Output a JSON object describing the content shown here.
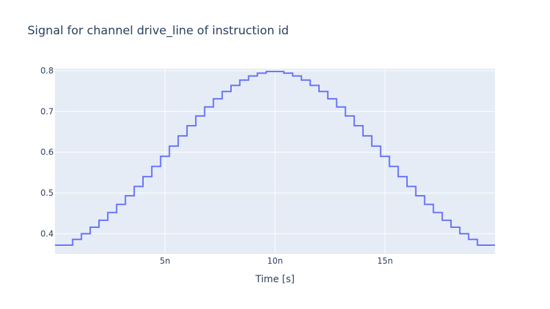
{
  "chart_data": {
    "type": "line",
    "line_shape": "step",
    "title": "Signal for channel drive_line of instruction id",
    "xlabel": "Time [s]",
    "ylabel": "",
    "xlim": [
      0,
      2e-08
    ],
    "ylim": [
      0.35,
      0.805
    ],
    "x_ticks": [
      {
        "value": 5e-09,
        "label": "5n"
      },
      {
        "value": 1e-08,
        "label": "10n"
      },
      {
        "value": 1.5e-08,
        "label": "15n"
      }
    ],
    "y_ticks": [
      {
        "value": 0.4,
        "label": "0.4"
      },
      {
        "value": 0.5,
        "label": "0.5"
      },
      {
        "value": 0.6,
        "label": "0.6"
      },
      {
        "value": 0.7,
        "label": "0.7"
      },
      {
        "value": 0.8,
        "label": "0.8"
      }
    ],
    "grid": true,
    "colors": {
      "plot_bg": "#e5ecf6",
      "grid": "#ffffff",
      "line": "#636efa",
      "text": "#2a3f5f"
    },
    "series": [
      {
        "x": [
          0,
          4e-10,
          8e-10,
          1.2e-09,
          1.6e-09,
          2e-09,
          2.4e-09,
          2.8e-09,
          3.2e-09,
          3.6e-09,
          4e-09,
          4.4e-09,
          4.8e-09,
          5.2e-09,
          5.6e-09,
          6e-09,
          6.4e-09,
          6.8e-09,
          7.2e-09,
          7.6e-09,
          8e-09,
          8.4e-09,
          8.8e-09,
          9.2e-09,
          9.6e-09,
          1e-08,
          1.04e-08,
          1.08e-08,
          1.12e-08,
          1.16e-08,
          1.2e-08,
          1.24e-08,
          1.28e-08,
          1.32e-08,
          1.36e-08,
          1.4e-08,
          1.44e-08,
          1.48e-08,
          1.52e-08,
          1.56e-08,
          1.6e-08,
          1.64e-08,
          1.68e-08,
          1.72e-08,
          1.76e-08,
          1.8e-08,
          1.84e-08,
          1.88e-08,
          1.92e-08,
          1.96e-08
        ],
        "y": [
          0.372,
          0.372,
          0.386,
          0.4,
          0.416,
          0.433,
          0.452,
          0.472,
          0.493,
          0.516,
          0.54,
          0.565,
          0.59,
          0.615,
          0.64,
          0.665,
          0.689,
          0.711,
          0.731,
          0.749,
          0.764,
          0.777,
          0.787,
          0.794,
          0.798,
          0.798,
          0.794,
          0.787,
          0.777,
          0.764,
          0.749,
          0.731,
          0.711,
          0.689,
          0.665,
          0.64,
          0.615,
          0.59,
          0.565,
          0.54,
          0.516,
          0.493,
          0.472,
          0.452,
          0.433,
          0.416,
          0.4,
          0.386,
          0.372,
          0.372
        ],
        "x_end": 2e-08
      }
    ]
  }
}
